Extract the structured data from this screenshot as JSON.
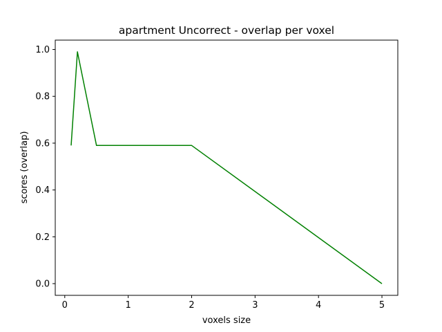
{
  "chart_data": {
    "type": "line",
    "title": "apartment Uncorrect - overlap per voxel",
    "xlabel": "voxels size",
    "ylabel": "scores (overlap)",
    "xlim": [
      -0.15,
      5.25
    ],
    "ylim": [
      -0.05,
      1.04
    ],
    "x_ticks": [
      0,
      1,
      2,
      3,
      4,
      5
    ],
    "y_ticks": [
      0.0,
      0.2,
      0.4,
      0.6,
      0.8,
      1.0
    ],
    "x_tick_labels": [
      "0",
      "1",
      "2",
      "3",
      "4",
      "5"
    ],
    "y_tick_labels": [
      "0.0",
      "0.2",
      "0.4",
      "0.6",
      "0.8",
      "1.0"
    ],
    "grid": false,
    "series": [
      {
        "color": "#008000",
        "x": [
          0.1,
          0.2,
          0.5,
          1,
          2,
          5
        ],
        "y": [
          0.59,
          0.99,
          0.59,
          0.59,
          0.59,
          0.0
        ]
      }
    ]
  }
}
